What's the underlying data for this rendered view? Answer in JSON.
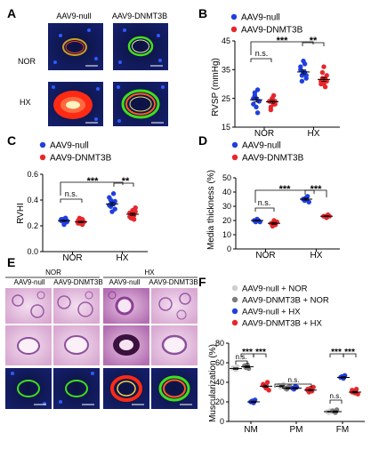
{
  "colors": {
    "blue": "#1f3fe0",
    "red": "#e8262b",
    "light_gray": "#cfcfcf",
    "dark_gray": "#7d7d7d",
    "he_pink": "#e6b6dd",
    "he_purple": "#8d4f9b",
    "fluor_blue": "#1b2c9c",
    "fluor_red": "#ff2a14",
    "fluor_green": "#3ee01a"
  },
  "panels": {
    "A": {
      "letter": "A",
      "col_labels": [
        "AAV9-null",
        "AAV9-DNMT3B"
      ],
      "row_labels": [
        "NOR",
        "HX"
      ]
    },
    "B": {
      "letter": "B",
      "legend": [
        "AAV9-null",
        "AAV9-DNMT3B"
      ],
      "sig": [
        "n.s.",
        "***",
        "**"
      ]
    },
    "C": {
      "letter": "C",
      "legend": [
        "AAV9-null",
        "AAV9-DNMT3B"
      ],
      "sig": [
        "n.s.",
        "***",
        "**"
      ]
    },
    "D": {
      "letter": "D",
      "legend": [
        "AAV9-null",
        "AAV9-DNMT3B"
      ],
      "sig": [
        "n.s.",
        "***",
        "***"
      ]
    },
    "E": {
      "letter": "E",
      "group_labels": [
        "NOR",
        "HX"
      ],
      "col_labels": [
        "AAV9-null",
        "AAV9-DNMT3B",
        "AAV9-null",
        "AAV9-DNMT3B"
      ]
    },
    "F": {
      "letter": "F",
      "legend": [
        "AAV9-null + NOR",
        "AAV9-DNMT3B + NOR",
        "AAV9-null + HX",
        "AAV9-DNMT3B + HX"
      ],
      "sig": [
        "n.s.",
        "***",
        "***",
        "n.s.",
        "***",
        "***",
        "n.s."
      ]
    }
  },
  "chart_data": [
    {
      "panel": "B",
      "type": "scatter",
      "ylabel": "RVSP (mmHg)",
      "ylim": [
        15,
        45
      ],
      "yticks": [
        15,
        25,
        35,
        45
      ],
      "categories": [
        "NOR",
        "HX"
      ],
      "series": [
        {
          "name": "AAV9-null",
          "means": [
            24.5,
            34.2
          ],
          "points": [
            [
              25,
              26,
              22,
              20,
              24,
              23,
              27,
              25,
              28,
              24
            ],
            [
              36,
              33,
              34,
              37,
              32,
              35,
              31,
              38,
              34,
              33
            ]
          ]
        },
        {
          "name": "AAV9-DNMT3B",
          "means": [
            23.8,
            31.6
          ],
          "points": [
            [
              24,
              22,
              25,
              26,
              23,
              24,
              21,
              25,
              23,
              24
            ],
            [
              30,
              32,
              36,
              29,
              33,
              31,
              34,
              30,
              32,
              31
            ]
          ]
        }
      ]
    },
    {
      "panel": "C",
      "type": "scatter",
      "ylabel": "RVHI",
      "ylim": [
        0.0,
        0.6
      ],
      "yticks": [
        0.0,
        0.2,
        0.4,
        0.6
      ],
      "categories": [
        "NOR",
        "HX"
      ],
      "series": [
        {
          "name": "AAV9-null",
          "means": [
            0.24,
            0.37
          ],
          "points": [
            [
              0.24,
              0.25,
              0.22,
              0.26,
              0.23,
              0.25,
              0.24,
              0.21,
              0.26,
              0.24
            ],
            [
              0.42,
              0.35,
              0.38,
              0.45,
              0.33,
              0.36,
              0.4,
              0.31,
              0.37,
              0.39
            ]
          ]
        },
        {
          "name": "AAV9-DNMT3B",
          "means": [
            0.23,
            0.29
          ],
          "points": [
            [
              0.24,
              0.22,
              0.25,
              0.21,
              0.23,
              0.22,
              0.26,
              0.22,
              0.25,
              0.23
            ],
            [
              0.3,
              0.26,
              0.32,
              0.28,
              0.34,
              0.27,
              0.3,
              0.29,
              0.25,
              0.31
            ]
          ]
        }
      ]
    },
    {
      "panel": "D",
      "type": "scatter",
      "ylabel": "Media thickness (%)",
      "ylim": [
        0,
        50
      ],
      "yticks": [
        0,
        10,
        20,
        30,
        40,
        50
      ],
      "categories": [
        "NOR",
        "HX"
      ],
      "series": [
        {
          "name": "AAV9-null",
          "means": [
            20,
            35
          ],
          "points": [
            [
              20,
              19,
              21,
              20,
              19
            ],
            [
              35,
              34,
              36,
              37,
              33
            ]
          ]
        },
        {
          "name": "AAV9-DNMT3B",
          "means": [
            18,
            23
          ],
          "points": [
            [
              18,
              16,
              20,
              17,
              19
            ],
            [
              23,
              23,
              22,
              24,
              23
            ]
          ]
        }
      ]
    },
    {
      "panel": "F",
      "type": "scatter",
      "ylabel": "Muscularization (%)",
      "ylim": [
        0,
        80
      ],
      "yticks": [
        0,
        20,
        40,
        60,
        80
      ],
      "categories": [
        "NM",
        "PM",
        "FM"
      ],
      "series": [
        {
          "name": "AAV9-null + NOR",
          "means": [
            54,
            36,
            10
          ],
          "points": [
            [
              55,
              54,
              53,
              56
            ],
            [
              37,
              35,
              36,
              38
            ],
            [
              10,
              9,
              11,
              10
            ]
          ]
        },
        {
          "name": "AAV9-DNMT3B + NOR",
          "means": [
            56,
            34,
            10
          ],
          "points": [
            [
              57,
              55,
              58,
              54
            ],
            [
              34,
              33,
              35,
              36
            ],
            [
              11,
              10,
              9,
              12
            ]
          ]
        },
        {
          "name": "AAV9-null + HX",
          "means": [
            20,
            34,
            45
          ],
          "points": [
            [
              20,
              21,
              19,
              22
            ],
            [
              34,
              33,
              36,
              35
            ],
            [
              45,
              46,
              44,
              47
            ]
          ]
        },
        {
          "name": "AAV9-DNMT3B + HX",
          "means": [
            36,
            32,
            30
          ],
          "points": [
            [
              38,
              36,
              34,
              40,
              32,
              37
            ],
            [
              33,
              30,
              34,
              31,
              35,
              32
            ],
            [
              30,
              31,
              29,
              33,
              28,
              32
            ]
          ]
        }
      ]
    }
  ]
}
